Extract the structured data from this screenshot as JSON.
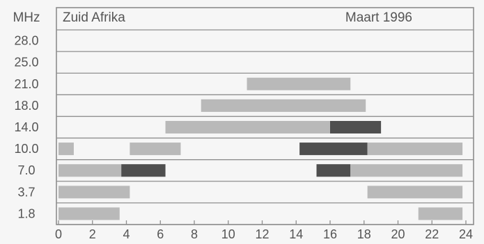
{
  "chart_data": {
    "type": "timeline-bar",
    "unit_label": "MHz",
    "region_label": "Zuid Afrika",
    "date_label": "Maart 1996",
    "frequencies": [
      "28.0",
      "25.0",
      "21.0",
      "18.0",
      "14.0",
      "10.0",
      "7.0",
      "3.7",
      "1.8"
    ],
    "x_ticks": [
      "0",
      "2",
      "4",
      "6",
      "8",
      "10",
      "12",
      "14",
      "16",
      "18",
      "20",
      "22",
      "24"
    ],
    "xlim": [
      0,
      24
    ],
    "grid": true,
    "colors": {
      "light": "#b9b9b9",
      "dark": "#4f4f4f",
      "frame": "#8e8e8e",
      "background": "#f6f6f6",
      "text": "#555555"
    },
    "bars": [
      {
        "band": "21.0",
        "start": 11.1,
        "end": 17.2,
        "shade": "light"
      },
      {
        "band": "18.0",
        "start": 8.4,
        "end": 18.1,
        "shade": "light"
      },
      {
        "band": "14.0",
        "start": 6.3,
        "end": 16.0,
        "shade": "light"
      },
      {
        "band": "14.0",
        "start": 16.0,
        "end": 19.0,
        "shade": "dark"
      },
      {
        "band": "10.0",
        "start": 0.0,
        "end": 0.9,
        "shade": "light"
      },
      {
        "band": "10.0",
        "start": 4.2,
        "end": 7.2,
        "shade": "light"
      },
      {
        "band": "10.0",
        "start": 14.2,
        "end": 18.2,
        "shade": "dark"
      },
      {
        "band": "10.0",
        "start": 18.2,
        "end": 23.8,
        "shade": "light"
      },
      {
        "band": "7.0",
        "start": 0.0,
        "end": 3.7,
        "shade": "light"
      },
      {
        "band": "7.0",
        "start": 3.7,
        "end": 6.3,
        "shade": "dark"
      },
      {
        "band": "7.0",
        "start": 15.2,
        "end": 17.2,
        "shade": "dark"
      },
      {
        "band": "7.0",
        "start": 17.2,
        "end": 23.8,
        "shade": "light"
      },
      {
        "band": "3.7",
        "start": 0.0,
        "end": 4.2,
        "shade": "light"
      },
      {
        "band": "3.7",
        "start": 18.2,
        "end": 23.8,
        "shade": "light"
      },
      {
        "band": "1.8",
        "start": 0.0,
        "end": 3.6,
        "shade": "light"
      },
      {
        "band": "1.8",
        "start": 21.2,
        "end": 23.8,
        "shade": "light"
      }
    ]
  }
}
